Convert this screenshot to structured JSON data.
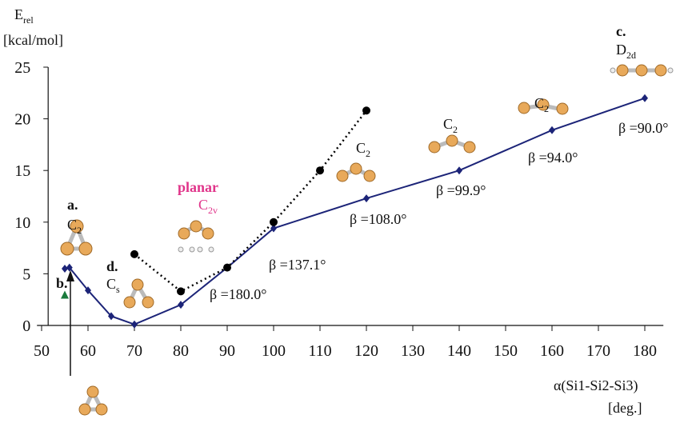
{
  "chart_data": {
    "type": "line",
    "y_label": {
      "main": "E",
      "sub": "rel"
    },
    "y_unit": "[kcal/mol]",
    "x_label": "α(Si1-Si2-Si3)",
    "x_unit": "[deg.]",
    "xlim": [
      49,
      184
    ],
    "ylim": [
      0,
      25
    ],
    "xticks": [
      50,
      60,
      70,
      80,
      90,
      100,
      110,
      120,
      130,
      140,
      150,
      160,
      170,
      180
    ],
    "yticks": [
      0,
      5,
      10,
      15,
      20,
      25
    ],
    "series": [
      {
        "color": "#1c2478",
        "style": "solid",
        "marker": "diamond",
        "x": [
          55,
          56,
          60,
          65,
          70,
          80,
          90,
          100,
          120,
          140,
          160,
          180
        ],
        "values": [
          5.5,
          5.6,
          3.4,
          0.9,
          0.1,
          2,
          5.6,
          9.4,
          12.3,
          15,
          18.9,
          22
        ]
      },
      {
        "color": "#000000",
        "style": "dotted",
        "marker": "circle",
        "x": [
          70,
          80,
          90,
          100,
          110,
          120
        ],
        "values": [
          6.9,
          3.3,
          5.6,
          10,
          15,
          20.8
        ]
      },
      {
        "color": "#1a7a3c",
        "style": "none",
        "marker": "triangle",
        "x": [
          55
        ],
        "values": [
          2.9
        ]
      }
    ],
    "annotations": [
      {
        "main": "a."
      },
      {
        "main": "C",
        "sub": "2"
      },
      {
        "main": "b."
      },
      {
        "main": "d."
      },
      {
        "main": "C",
        "sub": "s"
      },
      {
        "main": "planar"
      },
      {
        "main": "C",
        "sub": "2v"
      },
      {
        "main": "β =180.0°"
      },
      {
        "main": "β =137.1°"
      },
      {
        "main": "C",
        "sub": "2"
      },
      {
        "main": "β =108.0°"
      },
      {
        "main": "C",
        "sub": "2"
      },
      {
        "main": "β =99.9°"
      },
      {
        "main": "C",
        "sub": "2"
      },
      {
        "main": "β =94.0°"
      },
      {
        "main": "c."
      },
      {
        "main": "D",
        "sub": "2d"
      },
      {
        "main": "β =90.0°"
      }
    ]
  }
}
